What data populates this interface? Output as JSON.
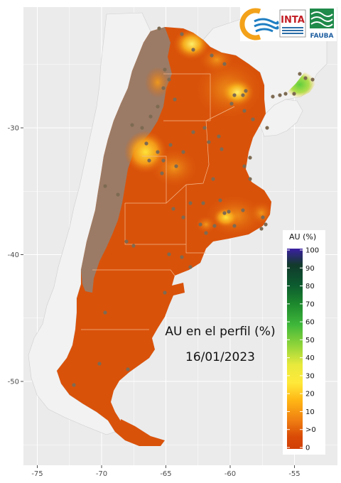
{
  "map": {
    "overlay_title": "AU en el perfil (%)",
    "overlay_date": "16/01/2023",
    "x_ticks": [
      {
        "label": "-75",
        "lon": -75
      },
      {
        "label": "-70",
        "lon": -70
      },
      {
        "label": "-65",
        "lon": -65
      },
      {
        "label": "-60",
        "lon": -60
      },
      {
        "label": "-55",
        "lon": -55
      }
    ],
    "y_ticks": [
      {
        "label": "-30",
        "lat": -30
      },
      {
        "label": "-40",
        "lat": -40
      },
      {
        "label": "-50",
        "lat": -50
      }
    ],
    "legend": {
      "title": "AU (%)",
      "labels": [
        "100",
        "90",
        "80",
        "70",
        "60",
        "50",
        "40",
        "30",
        "20",
        "10",
        ">0",
        "0"
      ],
      "colors": [
        "#3b1fa3",
        "#123a2c",
        "#0c5a2f",
        "#1e8a2e",
        "#3fb73a",
        "#8fd43a",
        "#e8e93c",
        "#ffe93a",
        "#ffb514",
        "#ef7d12",
        "#d94a06",
        "#d23f05"
      ]
    },
    "logos": [
      {
        "name": "swirl-logo"
      },
      {
        "name": "inta-logo",
        "text": "INTA"
      },
      {
        "name": "fauba-logo",
        "text": "FAUBA"
      }
    ],
    "colors": {
      "panel_bg": "#ebebeb",
      "grid": "#ffffff",
      "base_orange": "#d9520a",
      "dry_mountain": "#9b7b66",
      "neighbors": "#f2f2f2",
      "station_dot": "#7d6a52"
    }
  }
}
